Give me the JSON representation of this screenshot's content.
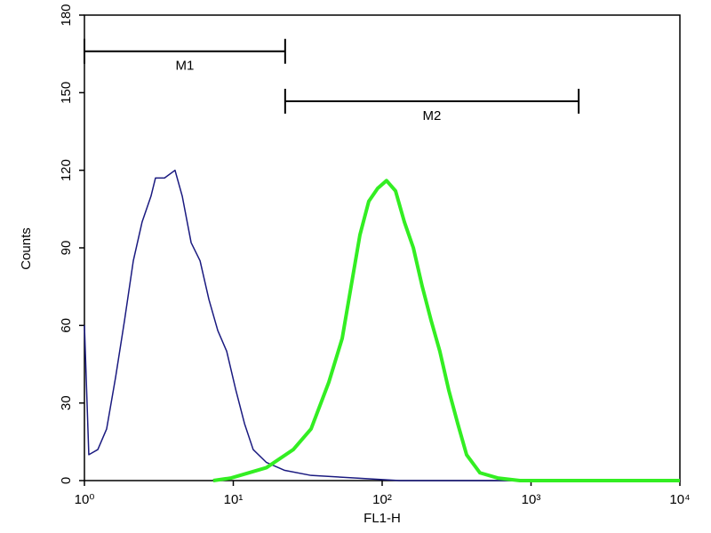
{
  "chart_data": {
    "type": "line",
    "x_label": "FL1-H",
    "y_label": "Counts",
    "xscale": "log",
    "xlim": [
      1,
      10000
    ],
    "ylim": [
      0,
      180
    ],
    "xticks": [
      {
        "value": 1,
        "label": "10⁰"
      },
      {
        "value": 10,
        "label": "10¹"
      },
      {
        "value": 100,
        "label": "10²"
      },
      {
        "value": 1000,
        "label": "10³"
      },
      {
        "value": 10000,
        "label": "10⁴"
      }
    ],
    "yticks": [
      0,
      30,
      60,
      90,
      120,
      150,
      180
    ],
    "series": [
      {
        "color": "#1a1a80",
        "width": 1.5,
        "x": [
          1,
          1.07,
          1.23,
          1.41,
          1.62,
          1.86,
          2.13,
          2.44,
          2.8,
          3.0,
          3.45,
          4.06,
          4.54,
          5.21,
          5.98,
          6.86,
          7.87,
          9.03,
          10.4,
          11.9,
          13.6,
          16.7,
          22.0,
          33.3,
          66.5,
          131,
          1030
        ],
        "values": [
          60,
          10,
          12,
          20,
          40,
          62,
          85,
          100,
          110,
          117,
          117,
          120,
          110,
          92,
          85,
          70,
          58,
          50,
          35,
          22,
          12,
          7,
          4,
          2,
          1,
          0,
          0
        ]
      },
      {
        "color": "#33ee22",
        "width": 4,
        "x": [
          7.33,
          9.67,
          16.7,
          25.3,
          33.3,
          43.8,
          53.9,
          61.8,
          70.9,
          81.3,
          93.3,
          107,
          123,
          141,
          162,
          186,
          213,
          244,
          280,
          322,
          369,
          454,
          597,
          842,
          10000
        ],
        "values": [
          0,
          1,
          5,
          12,
          20,
          38,
          55,
          75,
          95,
          108,
          113,
          116,
          112,
          100,
          90,
          75,
          62,
          50,
          35,
          22,
          10,
          3,
          1,
          0,
          0
        ]
      }
    ],
    "markers": [
      {
        "label": "M1",
        "x": [
          1,
          22.3
        ],
        "y": 166
      },
      {
        "label": "M2",
        "x": [
          22.3,
          2090
        ],
        "y": 146.7
      }
    ]
  }
}
